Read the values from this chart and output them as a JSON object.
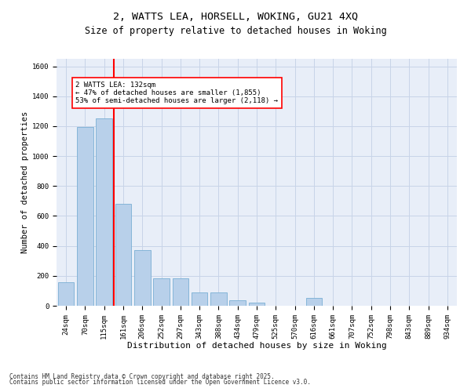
{
  "title_line1": "2, WATTS LEA, HORSELL, WOKING, GU21 4XQ",
  "title_line2": "Size of property relative to detached houses in Woking",
  "xlabel": "Distribution of detached houses by size in Woking",
  "ylabel": "Number of detached properties",
  "categories": [
    "24sqm",
    "70sqm",
    "115sqm",
    "161sqm",
    "206sqm",
    "252sqm",
    "297sqm",
    "343sqm",
    "388sqm",
    "434sqm",
    "479sqm",
    "525sqm",
    "570sqm",
    "616sqm",
    "661sqm",
    "707sqm",
    "752sqm",
    "798sqm",
    "843sqm",
    "889sqm",
    "934sqm"
  ],
  "values": [
    155,
    1195,
    1250,
    680,
    370,
    185,
    185,
    90,
    90,
    35,
    20,
    0,
    0,
    55,
    0,
    0,
    0,
    0,
    0,
    0,
    0
  ],
  "bar_color": "#b8d0ea",
  "bar_edge_color": "#7aafd4",
  "vertical_line_color": "red",
  "vertical_line_index": 2.5,
  "annotation_text": "2 WATTS LEA: 132sqm\n← 47% of detached houses are smaller (1,855)\n53% of semi-detached houses are larger (2,118) →",
  "annotation_box_color": "red",
  "ylim": [
    0,
    1650
  ],
  "yticks": [
    0,
    200,
    400,
    600,
    800,
    1000,
    1200,
    1400,
    1600
  ],
  "grid_color": "#c8d4e8",
  "background_color": "#e8eef8",
  "footer_line1": "Contains HM Land Registry data © Crown copyright and database right 2025.",
  "footer_line2": "Contains public sector information licensed under the Open Government Licence v3.0.",
  "title_fontsize": 9.5,
  "subtitle_fontsize": 8.5,
  "xlabel_fontsize": 8,
  "ylabel_fontsize": 7.5,
  "tick_fontsize": 6.5,
  "annot_fontsize": 6.5,
  "footer_fontsize": 5.5
}
